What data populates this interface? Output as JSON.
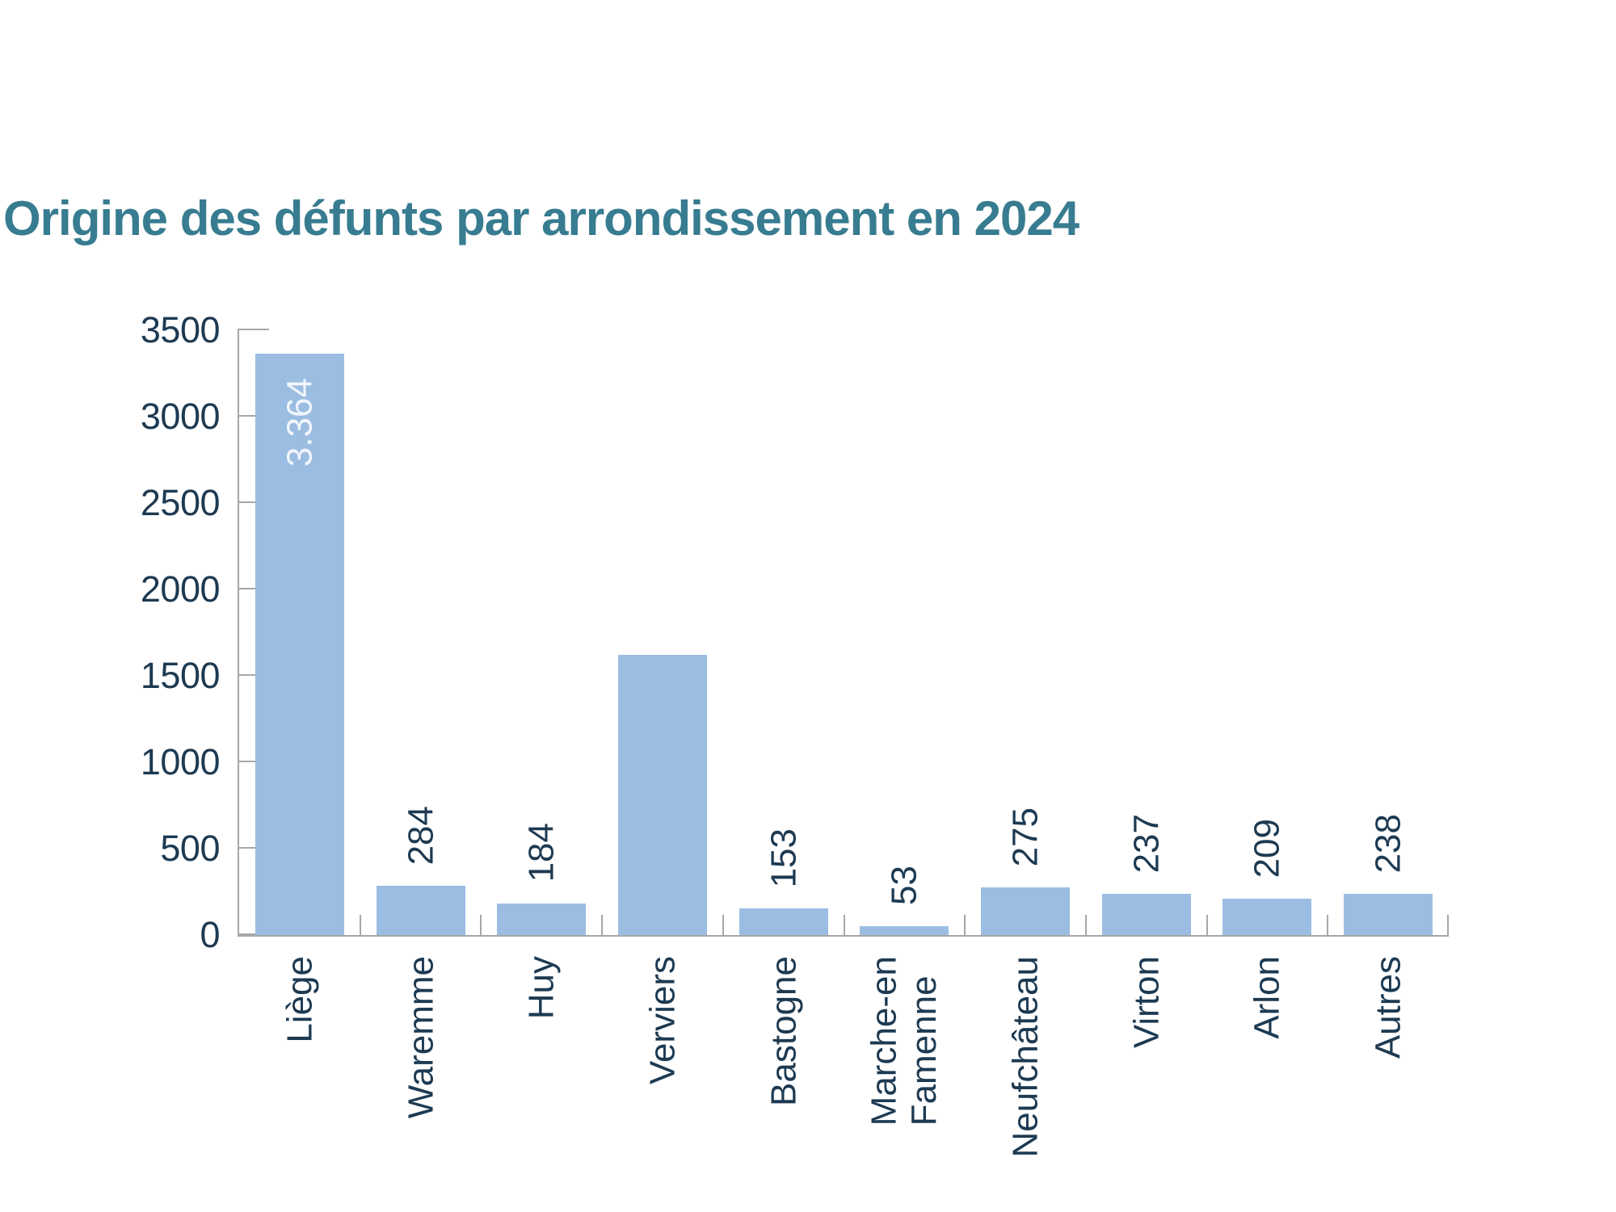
{
  "title": "Origine des défunts par arrondissement en 2024",
  "colors": {
    "title": "#377C90",
    "label_text": "#1D3A52",
    "bar_fill": "#9BBDE2",
    "bar_label_inside": "#F2F6FB",
    "axis": "#A7A7A7",
    "background": "#FFFFFF"
  },
  "chart_data": {
    "type": "bar",
    "title": "Origine des défunts par arrondissement en 2024",
    "categories": [
      "Liège",
      "Waremme",
      "Huy",
      "Verviers",
      "Bastogne",
      "Marche-en\nFamenne",
      "Neufchâteau",
      "Virton",
      "Arlon",
      "Autres"
    ],
    "category_slugs": [
      "liege",
      "waremme",
      "huy",
      "verviers",
      "bastogne",
      "marche-en-famenne",
      "neufchateau",
      "virton",
      "arlon",
      "autres"
    ],
    "values": [
      3364,
      284,
      184,
      1620,
      153,
      53,
      275,
      237,
      209,
      238
    ],
    "bar_labels": [
      "3.364",
      "284",
      "184",
      "",
      "153",
      "53",
      "275",
      "237",
      "209",
      "238"
    ],
    "bar_label_placement": [
      "inside-top",
      "above",
      "above",
      "none",
      "above",
      "above",
      "above",
      "above",
      "above",
      "above"
    ],
    "xlabel": "",
    "ylabel": "",
    "ylim": [
      0,
      3500
    ],
    "ytick_step": 500,
    "yticks": [
      0,
      500,
      1000,
      1500,
      2000,
      2500,
      3000,
      3500
    ],
    "ytick_labels": [
      "0",
      "500",
      "1000",
      "1500",
      "2000",
      "2500",
      "3000",
      "3500"
    ],
    "grid": false,
    "legend": false,
    "bar_value_labels_rotated": true,
    "category_labels_rotated": true
  }
}
